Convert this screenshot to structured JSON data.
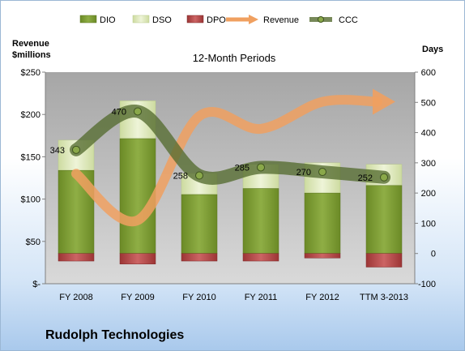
{
  "company": "Rudolph Technologies",
  "chart_data": {
    "type": "bar",
    "title": "12-Month Periods",
    "left_axis_label": [
      "Revenue",
      "$millions"
    ],
    "right_axis_label": "Days",
    "categories": [
      "FY 2008",
      "FY 2009",
      "FY 2010",
      "FY 2011",
      "FY 2012",
      "TTM 3-2013"
    ],
    "left_axis": {
      "min": 0,
      "max": 250,
      "ticks": [
        "$-",
        "$50",
        "$100",
        "$150",
        "$200",
        "$250"
      ]
    },
    "right_axis": {
      "min": -100,
      "max": 600,
      "ticks": [
        "-100",
        "0",
        "100",
        "200",
        "300",
        "400",
        "500",
        "600"
      ]
    },
    "legend": [
      "DIO",
      "DSO",
      "DPO",
      "Revenue",
      "CCC"
    ],
    "legend_position": "top",
    "stacked": true,
    "series": [
      {
        "name": "DIO",
        "axis": "right",
        "values": [
          275,
          380,
          195,
          215,
          200,
          225
        ]
      },
      {
        "name": "DSO",
        "axis": "right",
        "values": [
          100,
          125,
          70,
          80,
          100,
          70
        ]
      },
      {
        "name": "DPO",
        "axis": "right",
        "values": [
          -25,
          -35,
          -25,
          -25,
          -15,
          -45
        ]
      },
      {
        "name": "Revenue",
        "axis": "left",
        "style": "arrow",
        "values": [
          130,
          75,
          198,
          183,
          215,
          215
        ]
      },
      {
        "name": "CCC",
        "axis": "right",
        "style": "line",
        "values": [
          343,
          470,
          258,
          285,
          270,
          252
        ]
      }
    ],
    "data_labels": {
      "CCC": [
        "343",
        "470",
        "258",
        "285",
        "270",
        "252"
      ]
    },
    "grid": false,
    "colors": {
      "DIO": "#7e9a36",
      "DSO": "#dde9b8",
      "DPO": "#b84a4a",
      "Revenue": "#f0a060",
      "CCC": "#556b2f",
      "plot_bg": "#b3b3b3",
      "frame_gradient": "#a9c9ec"
    }
  }
}
